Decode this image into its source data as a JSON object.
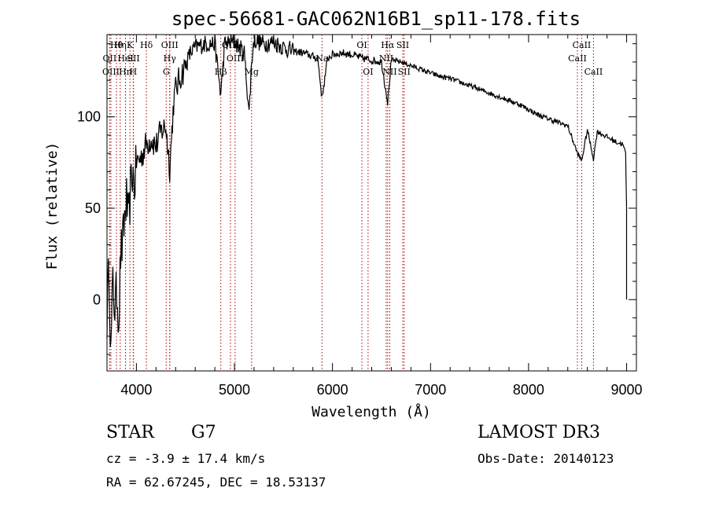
{
  "chart_data": {
    "type": "line",
    "title": "spec-56681-GAC062N16B1_sp11-178.fits",
    "xlabel": "Wavelength (Å)",
    "ylabel": "Flux (relative)",
    "xlim": [
      3700,
      9100
    ],
    "ylim": [
      -39,
      145
    ],
    "xticks": [
      4000,
      5000,
      6000,
      7000,
      8000,
      9000
    ],
    "yticks": [
      0,
      50,
      100
    ],
    "line_color": "#000000",
    "marker_color": "#aa0000",
    "series": [
      {
        "name": "spectrum",
        "x": [
          3700,
          3720,
          3740,
          3760,
          3780,
          3800,
          3820,
          3840,
          3860,
          3880,
          3900,
          3920,
          3940,
          3960,
          3980,
          4000,
          4050,
          4100,
          4150,
          4200,
          4250,
          4300,
          4340,
          4380,
          4400,
          4450,
          4500,
          4550,
          4600,
          4700,
          4800,
          4861,
          4900,
          5000,
          5100,
          5150,
          5175,
          5200,
          5300,
          5400,
          5500,
          5600,
          5700,
          5800,
          5850,
          5893,
          5950,
          6000,
          6100,
          6200,
          6300,
          6400,
          6500,
          6563,
          6600,
          6700,
          6800,
          6900,
          7000,
          7100,
          7200,
          7300,
          7400,
          7500,
          7600,
          7700,
          7800,
          7900,
          8000,
          8100,
          8200,
          8300,
          8400,
          8498,
          8542,
          8600,
          8662,
          8700,
          8800,
          8900,
          8960,
          8990,
          9000,
          9000
        ],
        "y": [
          -10,
          20,
          -30,
          10,
          -5,
          5,
          -10,
          25,
          30,
          45,
          55,
          40,
          60,
          70,
          62,
          75,
          78,
          85,
          88,
          84,
          92,
          95,
          72,
          108,
          115,
          122,
          128,
          135,
          138,
          140,
          140,
          112,
          140,
          141,
          135,
          102,
          130,
          142,
          140,
          141,
          138,
          136,
          135,
          133,
          132,
          110,
          132,
          134,
          135,
          134,
          132,
          131,
          130,
          108,
          131,
          130,
          128,
          126,
          124,
          122,
          121,
          119,
          117,
          115,
          113,
          111,
          109,
          107,
          104,
          101,
          99,
          97,
          95,
          80,
          76,
          93,
          77,
          92,
          89,
          86,
          85,
          80,
          50,
          0
        ]
      }
    ],
    "lines_markers": [
      {
        "label": "Hθ",
        "x": 3797,
        "row": 1
      },
      {
        "label": "OII",
        "x": 3727,
        "row": 2
      },
      {
        "label": "OIII",
        "x": 3740,
        "row": 3
      },
      {
        "label": "Hη",
        "x": 3835,
        "row": 1
      },
      {
        "label": "HeI",
        "x": 3889,
        "row": 2
      },
      {
        "label": "Hn",
        "x": 3889,
        "row": 3
      },
      {
        "label": "K",
        "x": 3934,
        "row": 1
      },
      {
        "label": "SII",
        "x": 3970,
        "row": 2
      },
      {
        "label": "H",
        "x": 3968,
        "row": 3
      },
      {
        "label": "Hδ",
        "x": 4102,
        "row": 1
      },
      {
        "label": "OIII",
        "x": 4340,
        "row": 1
      },
      {
        "label": "Hγ",
        "x": 4340,
        "row": 2
      },
      {
        "label": "G",
        "x": 4304,
        "row": 3
      },
      {
        "label": "Hβ",
        "x": 4861,
        "row": 3
      },
      {
        "label": "OIII",
        "x": 4959,
        "row": 1
      },
      {
        "label": "OIII",
        "x": 5007,
        "row": 2
      },
      {
        "label": "Mg",
        "x": 5175,
        "row": 3
      },
      {
        "label": "Na",
        "x": 5893,
        "row": 2
      },
      {
        "label": "OI",
        "x": 6300,
        "row": 1
      },
      {
        "label": "OI",
        "x": 6363,
        "row": 3
      },
      {
        "label": "Hα",
        "x": 6563,
        "row": 1
      },
      {
        "label": "NII",
        "x": 6548,
        "row": 2
      },
      {
        "label": "NII",
        "x": 6584,
        "row": 3
      },
      {
        "label": "SII",
        "x": 6717,
        "row": 1
      },
      {
        "label": "SII",
        "x": 6731,
        "row": 3
      },
      {
        "label": "CaII",
        "x": 8542,
        "row": 1
      },
      {
        "label": "CaII",
        "x": 8498,
        "row": 2
      },
      {
        "label": "CaII",
        "x": 8662,
        "row": 3
      }
    ]
  },
  "info": {
    "class": "STAR",
    "subclass": "G7",
    "survey": "LAMOST DR3",
    "cz": "cz = -3.9 ± 17.4 km/s",
    "obs_date": "Obs-Date: 20140123",
    "coords": "RA =  62.67245, DEC =  18.53137"
  }
}
